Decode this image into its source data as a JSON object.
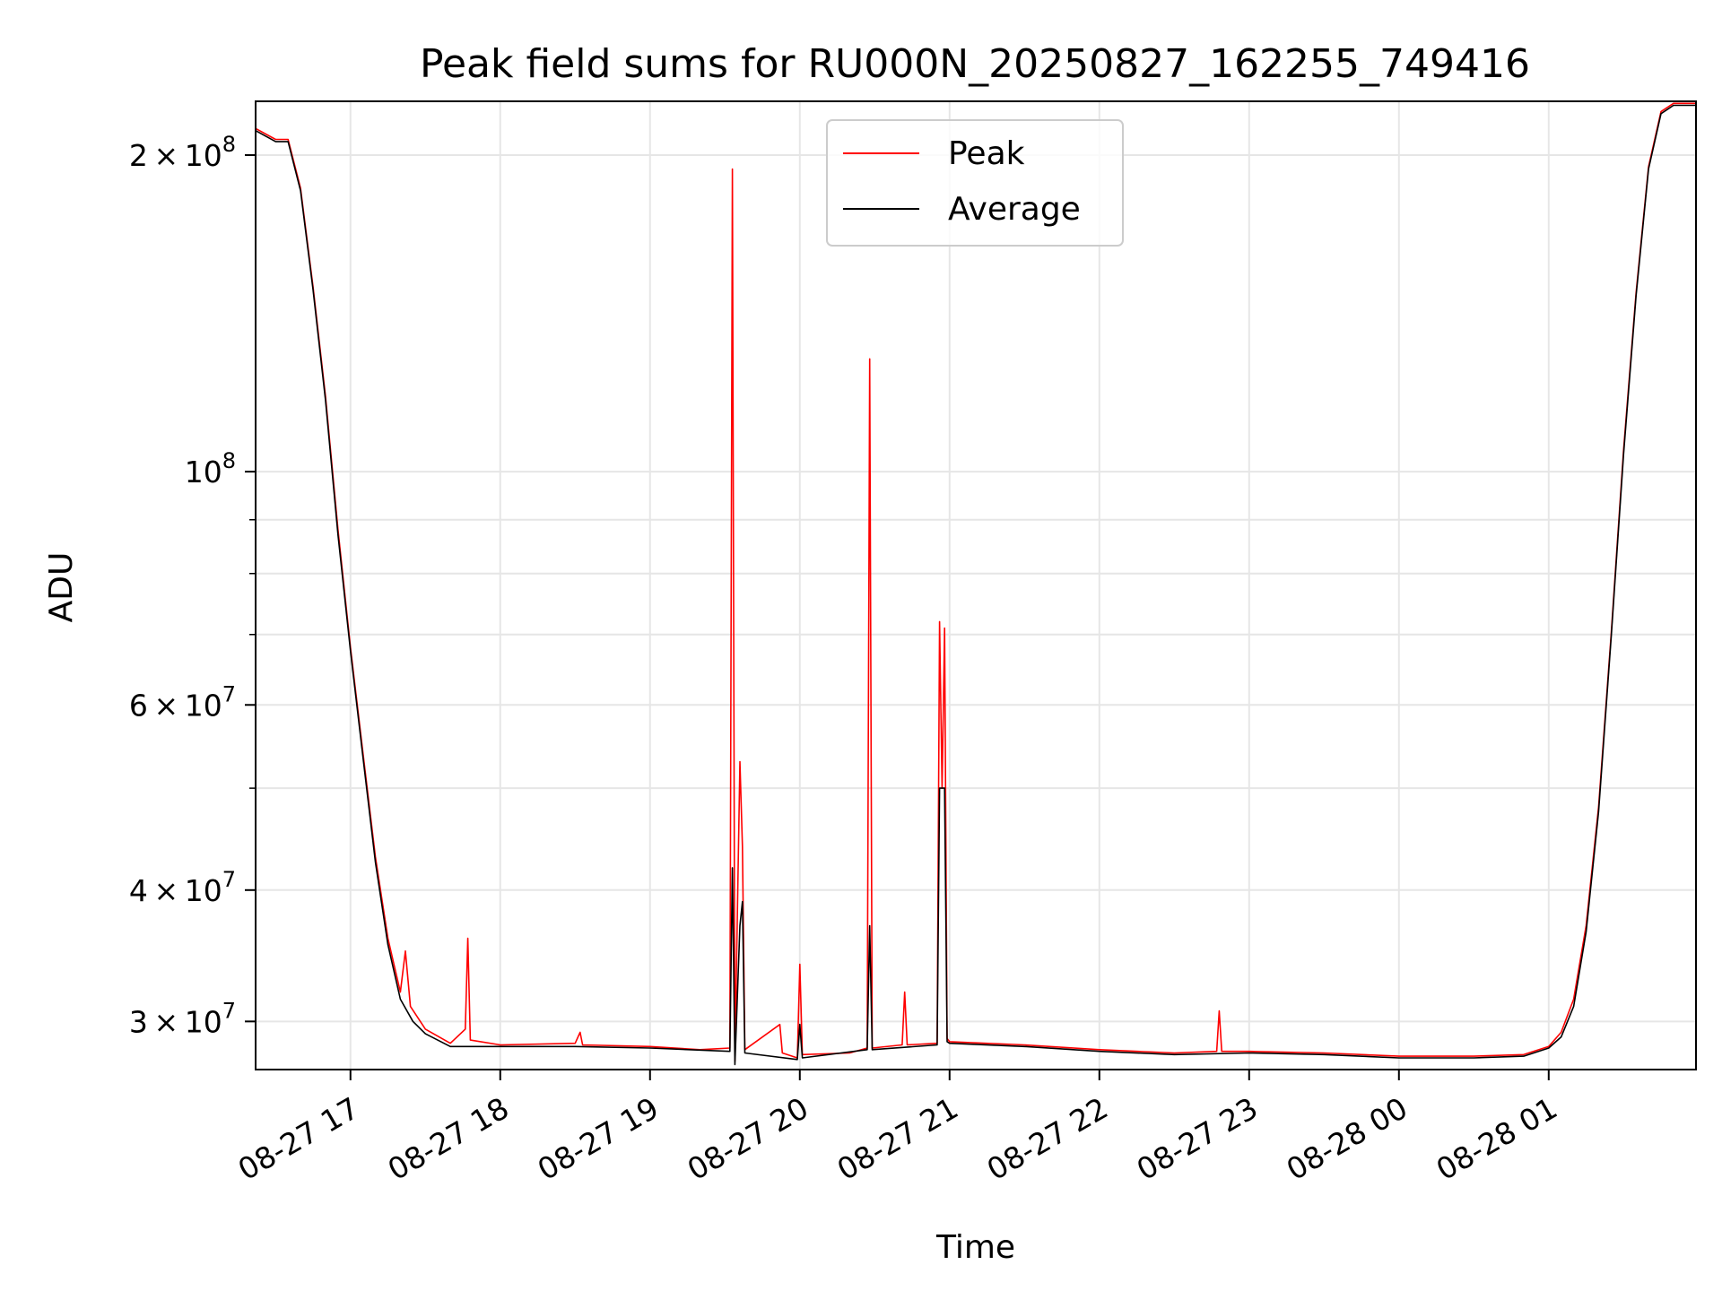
{
  "chart_data": {
    "type": "line",
    "title": "Peak field sums for RU000N_20250827_162255_749416",
    "xlabel": "Time",
    "ylabel": "ADU",
    "yscale": "log",
    "grid": true,
    "legend_placement": "upper center",
    "xlim": [
      "2025-08-27 16:22",
      "2025-08-28 01:59"
    ],
    "ylim": [
      27000000,
      225000000
    ],
    "x_ticks": [
      {
        "value": "2025-08-27 17:00",
        "label": "08-27 17"
      },
      {
        "value": "2025-08-27 18:00",
        "label": "08-27 18"
      },
      {
        "value": "2025-08-27 19:00",
        "label": "08-27 19"
      },
      {
        "value": "2025-08-27 20:00",
        "label": "08-27 20"
      },
      {
        "value": "2025-08-27 21:00",
        "label": "08-27 21"
      },
      {
        "value": "2025-08-27 22:00",
        "label": "08-27 22"
      },
      {
        "value": "2025-08-27 23:00",
        "label": "08-27 23"
      },
      {
        "value": "2025-08-28 00:00",
        "label": "08-28 00"
      },
      {
        "value": "2025-08-28 01:00",
        "label": "08-28 01"
      }
    ],
    "y_ticks": [
      {
        "value": 30000000,
        "mantissa": "3",
        "exponent": "7"
      },
      {
        "value": 40000000,
        "mantissa": "4",
        "exponent": "7"
      },
      {
        "value": 60000000,
        "mantissa": "6",
        "exponent": "7"
      },
      {
        "value": 100000000,
        "mantissa": "",
        "exponent": "8"
      },
      {
        "value": 200000000,
        "mantissa": "2",
        "exponent": "8"
      }
    ],
    "y_minor_ticks": [
      50000000,
      70000000,
      80000000,
      90000000
    ],
    "series": [
      {
        "name": "Peak",
        "color": "#ff0000",
        "points": [
          [
            "2025-08-27 16:22",
            212000000
          ],
          [
            "2025-08-27 16:30",
            207000000
          ],
          [
            "2025-08-27 16:35",
            207000000
          ],
          [
            "2025-08-27 16:40",
            186000000
          ],
          [
            "2025-08-27 16:45",
            150000000
          ],
          [
            "2025-08-27 16:50",
            118000000
          ],
          [
            "2025-08-27 16:55",
            88000000
          ],
          [
            "2025-08-27 17:00",
            68000000
          ],
          [
            "2025-08-27 17:05",
            54000000
          ],
          [
            "2025-08-27 17:10",
            43000000
          ],
          [
            "2025-08-27 17:15",
            36000000
          ],
          [
            "2025-08-27 17:20",
            32000000
          ],
          [
            "2025-08-27 17:22",
            35000000
          ],
          [
            "2025-08-27 17:24",
            31000000
          ],
          [
            "2025-08-27 17:30",
            29500000
          ],
          [
            "2025-08-27 17:40",
            28600000
          ],
          [
            "2025-08-27 17:46",
            29500000
          ],
          [
            "2025-08-27 17:47",
            36000000
          ],
          [
            "2025-08-27 17:48",
            28800000
          ],
          [
            "2025-08-27 18:00",
            28500000
          ],
          [
            "2025-08-27 18:30",
            28600000
          ],
          [
            "2025-08-27 18:32",
            29300000
          ],
          [
            "2025-08-27 18:33",
            28500000
          ],
          [
            "2025-08-27 19:00",
            28400000
          ],
          [
            "2025-08-27 19:20",
            28200000
          ],
          [
            "2025-08-27 19:32",
            28300000
          ],
          [
            "2025-08-27 19:33",
            194000000
          ],
          [
            "2025-08-27 19:34",
            27500000
          ],
          [
            "2025-08-27 19:36",
            53000000
          ],
          [
            "2025-08-27 19:37",
            44000000
          ],
          [
            "2025-08-27 19:38",
            28200000
          ],
          [
            "2025-08-27 19:52",
            29800000
          ],
          [
            "2025-08-27 19:53",
            28000000
          ],
          [
            "2025-08-27 19:59",
            27700000
          ],
          [
            "2025-08-27 20:00",
            34000000
          ],
          [
            "2025-08-27 20:01",
            27900000
          ],
          [
            "2025-08-27 20:20",
            28000000
          ],
          [
            "2025-08-27 20:27",
            28300000
          ],
          [
            "2025-08-27 20:28",
            128000000
          ],
          [
            "2025-08-27 20:29",
            28300000
          ],
          [
            "2025-08-27 20:41",
            28500000
          ],
          [
            "2025-08-27 20:42",
            32000000
          ],
          [
            "2025-08-27 20:43",
            28500000
          ],
          [
            "2025-08-27 20:55",
            28600000
          ],
          [
            "2025-08-27 20:56",
            72000000
          ],
          [
            "2025-08-27 20:57",
            50000000
          ],
          [
            "2025-08-27 20:58",
            71000000
          ],
          [
            "2025-08-27 20:59",
            28900000
          ],
          [
            "2025-08-27 21:00",
            28700000
          ],
          [
            "2025-08-27 21:30",
            28500000
          ],
          [
            "2025-08-27 22:00",
            28200000
          ],
          [
            "2025-08-27 22:30",
            28000000
          ],
          [
            "2025-08-27 22:47",
            28100000
          ],
          [
            "2025-08-27 22:48",
            30700000
          ],
          [
            "2025-08-27 22:49",
            28100000
          ],
          [
            "2025-08-27 23:00",
            28100000
          ],
          [
            "2025-08-27 23:30",
            28000000
          ],
          [
            "2025-08-28 00:00",
            27800000
          ],
          [
            "2025-08-28 00:30",
            27800000
          ],
          [
            "2025-08-28 00:50",
            27900000
          ],
          [
            "2025-08-28 01:00",
            28400000
          ],
          [
            "2025-08-28 01:05",
            29300000
          ],
          [
            "2025-08-28 01:10",
            31500000
          ],
          [
            "2025-08-28 01:15",
            37000000
          ],
          [
            "2025-08-28 01:20",
            48000000
          ],
          [
            "2025-08-28 01:25",
            70000000
          ],
          [
            "2025-08-28 01:30",
            105000000
          ],
          [
            "2025-08-28 01:35",
            148000000
          ],
          [
            "2025-08-28 01:40",
            195000000
          ],
          [
            "2025-08-28 01:45",
            220000000
          ],
          [
            "2025-08-28 01:50",
            224000000
          ],
          [
            "2025-08-28 01:59",
            224000000
          ]
        ]
      },
      {
        "name": "Average",
        "color": "#000000",
        "points": [
          [
            "2025-08-27 16:22",
            211000000
          ],
          [
            "2025-08-27 16:30",
            206000000
          ],
          [
            "2025-08-27 16:35",
            206000000
          ],
          [
            "2025-08-27 16:40",
            185000000
          ],
          [
            "2025-08-27 16:45",
            149000000
          ],
          [
            "2025-08-27 16:50",
            117000000
          ],
          [
            "2025-08-27 16:55",
            87000000
          ],
          [
            "2025-08-27 17:00",
            67500000
          ],
          [
            "2025-08-27 17:05",
            53500000
          ],
          [
            "2025-08-27 17:10",
            42500000
          ],
          [
            "2025-08-27 17:15",
            35500000
          ],
          [
            "2025-08-27 17:20",
            31500000
          ],
          [
            "2025-08-27 17:25",
            30000000
          ],
          [
            "2025-08-27 17:30",
            29200000
          ],
          [
            "2025-08-27 17:40",
            28400000
          ],
          [
            "2025-08-27 18:00",
            28400000
          ],
          [
            "2025-08-27 18:30",
            28400000
          ],
          [
            "2025-08-27 19:00",
            28300000
          ],
          [
            "2025-08-27 19:32",
            28100000
          ],
          [
            "2025-08-27 19:33",
            42000000
          ],
          [
            "2025-08-27 19:34",
            27300000
          ],
          [
            "2025-08-27 19:36",
            37000000
          ],
          [
            "2025-08-27 19:37",
            39000000
          ],
          [
            "2025-08-27 19:38",
            28000000
          ],
          [
            "2025-08-27 19:59",
            27600000
          ],
          [
            "2025-08-27 20:00",
            29800000
          ],
          [
            "2025-08-27 20:01",
            27700000
          ],
          [
            "2025-08-27 20:27",
            28200000
          ],
          [
            "2025-08-27 20:28",
            37000000
          ],
          [
            "2025-08-27 20:29",
            28200000
          ],
          [
            "2025-08-27 20:55",
            28500000
          ],
          [
            "2025-08-27 20:56",
            50000000
          ],
          [
            "2025-08-27 20:58",
            50000000
          ],
          [
            "2025-08-27 20:59",
            28700000
          ],
          [
            "2025-08-27 21:00",
            28600000
          ],
          [
            "2025-08-27 21:30",
            28400000
          ],
          [
            "2025-08-27 22:00",
            28100000
          ],
          [
            "2025-08-27 22:30",
            27900000
          ],
          [
            "2025-08-27 23:00",
            28000000
          ],
          [
            "2025-08-27 23:30",
            27900000
          ],
          [
            "2025-08-28 00:00",
            27700000
          ],
          [
            "2025-08-28 00:30",
            27700000
          ],
          [
            "2025-08-28 00:50",
            27800000
          ],
          [
            "2025-08-28 01:00",
            28300000
          ],
          [
            "2025-08-28 01:05",
            29000000
          ],
          [
            "2025-08-28 01:10",
            31000000
          ],
          [
            "2025-08-28 01:15",
            36500000
          ],
          [
            "2025-08-28 01:20",
            47500000
          ],
          [
            "2025-08-28 01:25",
            69500000
          ],
          [
            "2025-08-28 01:30",
            104000000
          ],
          [
            "2025-08-28 01:35",
            147000000
          ],
          [
            "2025-08-28 01:40",
            194000000
          ],
          [
            "2025-08-28 01:45",
            219000000
          ],
          [
            "2025-08-28 01:50",
            223000000
          ],
          [
            "2025-08-28 01:59",
            223000000
          ]
        ]
      }
    ]
  }
}
